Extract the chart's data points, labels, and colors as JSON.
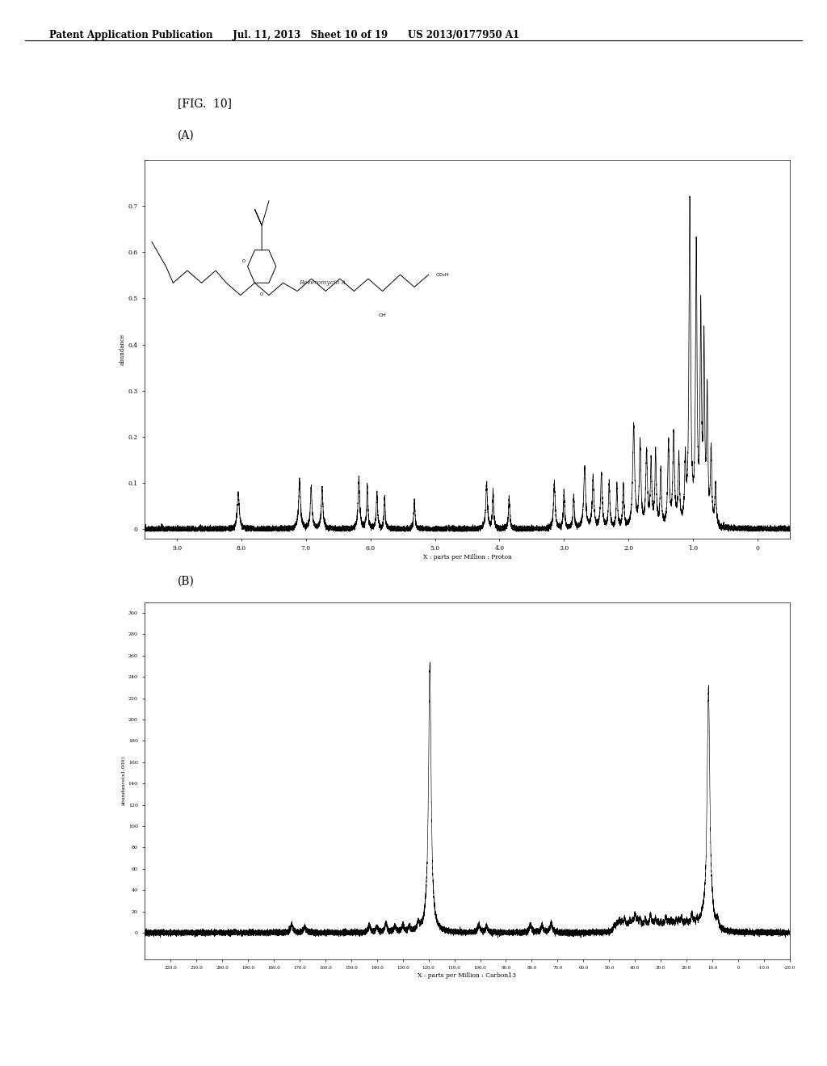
{
  "title_text": "Patent Application Publication      Jul. 11, 2013   Sheet 10 of 19      US 2013/0177950 A1",
  "fig_label": "[FIG.  10]",
  "panel_A_label": "(A)",
  "panel_B_label": "(B)",
  "panel_A_xlabel": "X : parts per Million : Proton",
  "panel_B_xlabel": "X : parts per Million : Carbon13",
  "background_color": "#ffffff",
  "panel_bg": "#ffffff"
}
